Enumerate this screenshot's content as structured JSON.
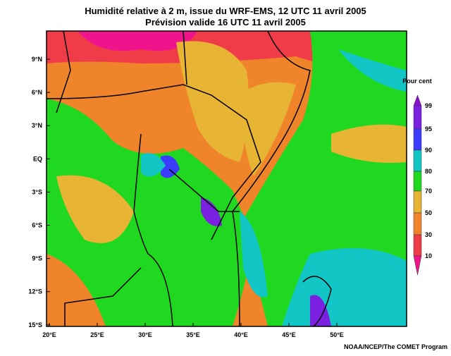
{
  "header": {
    "title": "Humidité relative à 2 m, issue du WRF-EMS, 12 UTC 11 avril 2005",
    "subtitle": "Prévision valide 16 UTC 11 avril 2005"
  },
  "axes": {
    "latitudes": [
      "9°N",
      "6°N",
      "3°N",
      "EQ",
      "3°S",
      "6°S",
      "9°S",
      "12°S",
      "15°S"
    ],
    "longitudes": [
      "20°E",
      "25°E",
      "30°E",
      "35°E",
      "40°E",
      "45°E",
      "50°E"
    ]
  },
  "colorbar": {
    "title": "Pour cent",
    "levels": [
      99,
      95,
      90,
      80,
      70,
      50,
      30,
      10
    ],
    "colors": [
      "#8a10d0",
      "#7a20e0",
      "#3c3cff",
      "#12c6c6",
      "#20d820",
      "#e8b434",
      "#f0842a",
      "#f03c48",
      "#f0148c"
    ]
  },
  "credit": "NOAA/NCEP/The COMET Program"
}
